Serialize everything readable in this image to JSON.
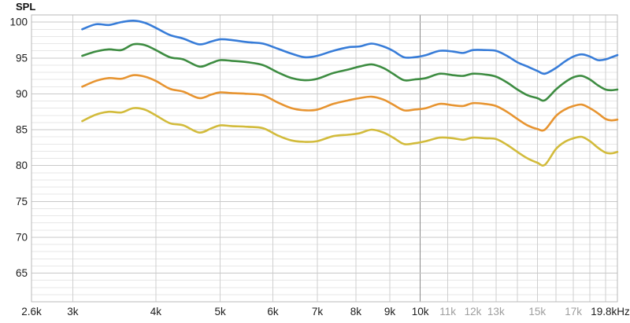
{
  "chart_data": {
    "type": "line",
    "title": "SPL",
    "y_axis": {
      "label": "SPL",
      "min": 61,
      "max": 101,
      "major_step": 5,
      "minor_step": 1,
      "tick_labels": [
        100,
        95,
        90,
        85,
        80,
        75,
        70,
        65
      ]
    },
    "x_axis": {
      "scale": "log",
      "min_khz": 2.6,
      "max_khz": 19.8,
      "gridlines_khz": [
        3,
        4,
        5,
        6,
        7,
        8,
        9,
        10,
        11,
        12,
        13,
        14,
        15,
        16,
        17,
        18,
        19
      ],
      "emphasized_khz": [
        10
      ],
      "ticks": [
        {
          "khz": 2.6,
          "label": "2.6k",
          "muted": false
        },
        {
          "khz": 3,
          "label": "3k",
          "muted": false
        },
        {
          "khz": 4,
          "label": "4k",
          "muted": false
        },
        {
          "khz": 5,
          "label": "5k",
          "muted": false
        },
        {
          "khz": 6,
          "label": "6k",
          "muted": false
        },
        {
          "khz": 7,
          "label": "7k",
          "muted": false
        },
        {
          "khz": 8,
          "label": "8k",
          "muted": false
        },
        {
          "khz": 9,
          "label": "9k",
          "muted": false
        },
        {
          "khz": 10,
          "label": "10k",
          "muted": false
        },
        {
          "khz": 11,
          "label": "11k",
          "muted": true
        },
        {
          "khz": 12,
          "label": "12k",
          "muted": true
        },
        {
          "khz": 13,
          "label": "13k",
          "muted": true
        },
        {
          "khz": 15,
          "label": "15k",
          "muted": true
        },
        {
          "khz": 17,
          "label": "17k",
          "muted": true
        },
        {
          "khz": 19.8,
          "label": "19.8kHz",
          "muted": false
        }
      ]
    },
    "x_khz": [
      3.1,
      3.25,
      3.4,
      3.55,
      3.7,
      3.85,
      4.0,
      4.2,
      4.4,
      4.65,
      4.85,
      5.0,
      5.2,
      5.5,
      5.8,
      6.1,
      6.4,
      6.7,
      7.0,
      7.4,
      7.8,
      8.1,
      8.45,
      8.8,
      9.1,
      9.45,
      9.8,
      10.2,
      10.7,
      11.2,
      11.6,
      12.0,
      12.5,
      13.0,
      13.5,
      14.0,
      14.5,
      15.0,
      15.4,
      16.0,
      16.5,
      17.0,
      17.5,
      18.0,
      18.5,
      19.0,
      19.4,
      19.8
    ],
    "series": [
      {
        "name": "curve-blue",
        "color": "#377cd8",
        "values": [
          99.0,
          99.7,
          99.6,
          100.0,
          100.2,
          99.9,
          99.2,
          98.2,
          97.7,
          96.9,
          97.3,
          97.6,
          97.5,
          97.2,
          97.0,
          96.3,
          95.6,
          95.1,
          95.3,
          96.0,
          96.5,
          96.6,
          97.0,
          96.6,
          96.0,
          95.1,
          95.1,
          95.4,
          96.0,
          95.9,
          95.7,
          96.1,
          96.1,
          96.0,
          95.3,
          94.4,
          93.8,
          93.2,
          92.8,
          93.6,
          94.5,
          95.2,
          95.5,
          95.2,
          94.7,
          94.8,
          95.1,
          95.4
        ]
      },
      {
        "name": "curve-green",
        "color": "#3d8c41",
        "values": [
          95.3,
          95.9,
          96.2,
          96.1,
          96.9,
          96.8,
          96.1,
          95.1,
          94.8,
          93.8,
          94.3,
          94.7,
          94.6,
          94.4,
          94.0,
          93.0,
          92.2,
          91.9,
          92.1,
          92.9,
          93.4,
          93.8,
          94.1,
          93.6,
          92.8,
          91.9,
          92.0,
          92.2,
          92.8,
          92.6,
          92.5,
          92.8,
          92.7,
          92.4,
          91.6,
          90.6,
          89.8,
          89.4,
          89.1,
          90.6,
          91.6,
          92.3,
          92.5,
          92.0,
          91.2,
          90.6,
          90.5,
          90.6
        ]
      },
      {
        "name": "curve-orange",
        "color": "#e79430",
        "values": [
          91.0,
          91.8,
          92.2,
          92.1,
          92.6,
          92.4,
          91.8,
          90.7,
          90.3,
          89.4,
          89.9,
          90.2,
          90.1,
          90.0,
          89.8,
          88.8,
          88.0,
          87.7,
          87.8,
          88.6,
          89.1,
          89.4,
          89.6,
          89.2,
          88.5,
          87.7,
          87.8,
          88.0,
          88.6,
          88.4,
          88.3,
          88.7,
          88.6,
          88.3,
          87.5,
          86.5,
          85.6,
          85.1,
          85.0,
          86.9,
          87.8,
          88.3,
          88.5,
          88.0,
          87.3,
          86.5,
          86.3,
          86.4
        ]
      },
      {
        "name": "curve-yellow",
        "color": "#d2bb3b",
        "values": [
          86.2,
          87.1,
          87.5,
          87.4,
          88.0,
          87.8,
          87.0,
          85.9,
          85.6,
          84.6,
          85.2,
          85.6,
          85.5,
          85.4,
          85.2,
          84.2,
          83.5,
          83.3,
          83.4,
          84.1,
          84.3,
          84.5,
          85.0,
          84.6,
          83.9,
          83.0,
          83.1,
          83.4,
          83.9,
          83.8,
          83.6,
          83.9,
          83.8,
          83.7,
          82.9,
          81.9,
          81.0,
          80.4,
          80.1,
          82.3,
          83.3,
          83.8,
          84.0,
          83.4,
          82.5,
          81.8,
          81.7,
          81.9
        ]
      }
    ],
    "colors": {
      "background": "#ffffff",
      "border": "#b9b9b9",
      "grid_minor": "#e7e7e7",
      "grid_major": "#c9c9c9",
      "grid_vertical": "#cfcfcf",
      "grid_emphasis": "#8a8a8a",
      "tick_text": "#1c1c1c",
      "tick_text_muted": "#9e9e9e"
    }
  }
}
